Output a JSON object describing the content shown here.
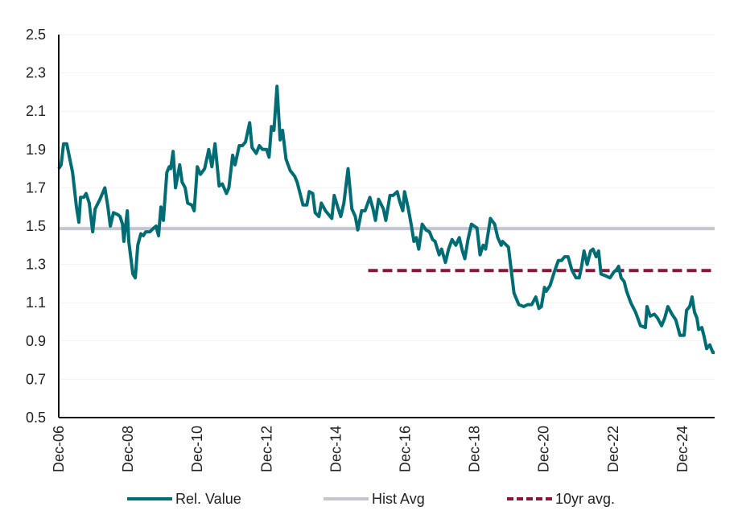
{
  "chart_data": {
    "type": "line",
    "title": "",
    "xlabel": "",
    "ylabel": "",
    "ylim": [
      0.5,
      2.5
    ],
    "yticks": [
      "0.5",
      "0.7",
      "0.9",
      "1.1",
      "1.3",
      "1.5",
      "1.7",
      "1.9",
      "2.1",
      "2.3",
      "2.5"
    ],
    "xlim_years": [
      2006.92,
      2025.85
    ],
    "xticks": [
      {
        "label": "Dec-06",
        "year": 2006.92
      },
      {
        "label": "Dec-08",
        "year": 2008.92
      },
      {
        "label": "Dec-10",
        "year": 2010.92
      },
      {
        "label": "Dec-12",
        "year": 2012.92
      },
      {
        "label": "Dec-14",
        "year": 2014.92
      },
      {
        "label": "Dec-16",
        "year": 2016.92
      },
      {
        "label": "Dec-18",
        "year": 2018.92
      },
      {
        "label": "Dec-20",
        "year": 2020.92
      },
      {
        "label": "Dec-22",
        "year": 2022.92
      },
      {
        "label": "Dec-24",
        "year": 2024.92
      }
    ],
    "grid": true,
    "legend_position": "bottom",
    "series": [
      {
        "name": "Rel. Value",
        "color": "#006D75",
        "style": "solid",
        "points": [
          [
            2006.92,
            1.8
          ],
          [
            2006.99,
            1.82
          ],
          [
            2007.06,
            1.93
          ],
          [
            2007.15,
            1.93
          ],
          [
            2007.32,
            1.78
          ],
          [
            2007.43,
            1.6
          ],
          [
            2007.5,
            1.52
          ],
          [
            2007.55,
            1.65
          ],
          [
            2007.64,
            1.65
          ],
          [
            2007.71,
            1.67
          ],
          [
            2007.8,
            1.62
          ],
          [
            2007.9,
            1.47
          ],
          [
            2007.97,
            1.59
          ],
          [
            2008.11,
            1.64
          ],
          [
            2008.25,
            1.7
          ],
          [
            2008.34,
            1.6
          ],
          [
            2008.41,
            1.5
          ],
          [
            2008.5,
            1.57
          ],
          [
            2008.62,
            1.56
          ],
          [
            2008.69,
            1.55
          ],
          [
            2008.76,
            1.51
          ],
          [
            2008.8,
            1.42
          ],
          [
            2008.9,
            1.58
          ],
          [
            2008.94,
            1.42
          ],
          [
            2009.06,
            1.25
          ],
          [
            2009.13,
            1.23
          ],
          [
            2009.2,
            1.4
          ],
          [
            2009.29,
            1.46
          ],
          [
            2009.36,
            1.45
          ],
          [
            2009.43,
            1.47
          ],
          [
            2009.55,
            1.47
          ],
          [
            2009.66,
            1.49
          ],
          [
            2009.73,
            1.5
          ],
          [
            2009.8,
            1.45
          ],
          [
            2009.87,
            1.6
          ],
          [
            2009.94,
            1.53
          ],
          [
            2010.04,
            1.78
          ],
          [
            2010.11,
            1.81
          ],
          [
            2010.15,
            1.8
          ],
          [
            2010.22,
            1.89
          ],
          [
            2010.29,
            1.7
          ],
          [
            2010.41,
            1.82
          ],
          [
            2010.48,
            1.73
          ],
          [
            2010.57,
            1.7
          ],
          [
            2010.64,
            1.62
          ],
          [
            2010.76,
            1.61
          ],
          [
            2010.83,
            1.58
          ],
          [
            2010.92,
            1.81
          ],
          [
            2011.01,
            1.77
          ],
          [
            2011.13,
            1.8
          ],
          [
            2011.25,
            1.9
          ],
          [
            2011.34,
            1.81
          ],
          [
            2011.43,
            1.93
          ],
          [
            2011.55,
            1.71
          ],
          [
            2011.64,
            1.72
          ],
          [
            2011.76,
            1.67
          ],
          [
            2011.83,
            1.7
          ],
          [
            2011.94,
            1.87
          ],
          [
            2012.01,
            1.82
          ],
          [
            2012.13,
            1.92
          ],
          [
            2012.22,
            1.92
          ],
          [
            2012.31,
            1.94
          ],
          [
            2012.43,
            2.04
          ],
          [
            2012.5,
            1.91
          ],
          [
            2012.62,
            1.88
          ],
          [
            2012.71,
            1.92
          ],
          [
            2012.8,
            1.9
          ],
          [
            2012.92,
            1.9
          ],
          [
            2012.99,
            1.86
          ],
          [
            2013.06,
            2.02
          ],
          [
            2013.13,
            2.0
          ],
          [
            2013.22,
            2.23
          ],
          [
            2013.31,
            1.95
          ],
          [
            2013.38,
            2.0
          ],
          [
            2013.48,
            1.85
          ],
          [
            2013.6,
            1.79
          ],
          [
            2013.73,
            1.76
          ],
          [
            2013.8,
            1.73
          ],
          [
            2013.9,
            1.66
          ],
          [
            2013.97,
            1.61
          ],
          [
            2014.08,
            1.61
          ],
          [
            2014.15,
            1.68
          ],
          [
            2014.25,
            1.67
          ],
          [
            2014.32,
            1.57
          ],
          [
            2014.43,
            1.55
          ],
          [
            2014.5,
            1.62
          ],
          [
            2014.62,
            1.58
          ],
          [
            2014.71,
            1.56
          ],
          [
            2014.8,
            1.54
          ],
          [
            2014.87,
            1.66
          ],
          [
            2014.97,
            1.6
          ],
          [
            2015.06,
            1.55
          ],
          [
            2015.15,
            1.62
          ],
          [
            2015.27,
            1.8
          ],
          [
            2015.38,
            1.59
          ],
          [
            2015.48,
            1.55
          ],
          [
            2015.55,
            1.48
          ],
          [
            2015.66,
            1.58
          ],
          [
            2015.76,
            1.58
          ],
          [
            2015.9,
            1.65
          ],
          [
            2015.99,
            1.59
          ],
          [
            2016.06,
            1.53
          ],
          [
            2016.15,
            1.64
          ],
          [
            2016.29,
            1.59
          ],
          [
            2016.36,
            1.53
          ],
          [
            2016.48,
            1.66
          ],
          [
            2016.57,
            1.66
          ],
          [
            2016.69,
            1.68
          ],
          [
            2016.76,
            1.63
          ],
          [
            2016.85,
            1.58
          ],
          [
            2016.9,
            1.68
          ],
          [
            2017.01,
            1.59
          ],
          [
            2017.1,
            1.5
          ],
          [
            2017.17,
            1.42
          ],
          [
            2017.24,
            1.44
          ],
          [
            2017.31,
            1.38
          ],
          [
            2017.41,
            1.51
          ],
          [
            2017.52,
            1.48
          ],
          [
            2017.62,
            1.47
          ],
          [
            2017.71,
            1.43
          ],
          [
            2017.78,
            1.42
          ],
          [
            2017.9,
            1.35
          ],
          [
            2017.97,
            1.38
          ],
          [
            2018.08,
            1.31
          ],
          [
            2018.17,
            1.38
          ],
          [
            2018.27,
            1.43
          ],
          [
            2018.38,
            1.4
          ],
          [
            2018.48,
            1.44
          ],
          [
            2018.57,
            1.37
          ],
          [
            2018.64,
            1.33
          ],
          [
            2018.73,
            1.43
          ],
          [
            2018.83,
            1.51
          ],
          [
            2018.99,
            1.49
          ],
          [
            2019.08,
            1.35
          ],
          [
            2019.17,
            1.4
          ],
          [
            2019.24,
            1.38
          ],
          [
            2019.38,
            1.54
          ],
          [
            2019.5,
            1.51
          ],
          [
            2019.59,
            1.44
          ],
          [
            2019.69,
            1.4
          ],
          [
            2019.73,
            1.42
          ],
          [
            2019.9,
            1.39
          ],
          [
            2020.06,
            1.15
          ],
          [
            2020.2,
            1.09
          ],
          [
            2020.34,
            1.08
          ],
          [
            2020.45,
            1.09
          ],
          [
            2020.57,
            1.09
          ],
          [
            2020.69,
            1.13
          ],
          [
            2020.78,
            1.07
          ],
          [
            2020.85,
            1.08
          ],
          [
            2020.94,
            1.18
          ],
          [
            2020.99,
            1.16
          ],
          [
            2021.1,
            1.19
          ],
          [
            2021.22,
            1.26
          ],
          [
            2021.34,
            1.32
          ],
          [
            2021.43,
            1.32
          ],
          [
            2021.52,
            1.34
          ],
          [
            2021.62,
            1.34
          ],
          [
            2021.73,
            1.27
          ],
          [
            2021.85,
            1.23
          ],
          [
            2021.94,
            1.23
          ],
          [
            2022.01,
            1.29
          ],
          [
            2022.08,
            1.37
          ],
          [
            2022.17,
            1.3
          ],
          [
            2022.27,
            1.37
          ],
          [
            2022.34,
            1.38
          ],
          [
            2022.43,
            1.34
          ],
          [
            2022.5,
            1.37
          ],
          [
            2022.57,
            1.25
          ],
          [
            2022.71,
            1.24
          ],
          [
            2022.83,
            1.23
          ],
          [
            2022.94,
            1.26
          ],
          [
            2023.01,
            1.27
          ],
          [
            2023.08,
            1.29
          ],
          [
            2023.15,
            1.23
          ],
          [
            2023.24,
            1.21
          ],
          [
            2023.31,
            1.16
          ],
          [
            2023.43,
            1.1
          ],
          [
            2023.57,
            1.05
          ],
          [
            2023.71,
            0.98
          ],
          [
            2023.85,
            0.97
          ],
          [
            2023.9,
            1.08
          ],
          [
            2023.99,
            1.03
          ],
          [
            2024.11,
            1.04
          ],
          [
            2024.2,
            1.02
          ],
          [
            2024.32,
            0.98
          ],
          [
            2024.41,
            1.02
          ],
          [
            2024.5,
            1.08
          ],
          [
            2024.62,
            1.04
          ],
          [
            2024.73,
            1.01
          ],
          [
            2024.85,
            0.93
          ],
          [
            2024.97,
            0.93
          ],
          [
            2025.04,
            1.06
          ],
          [
            2025.13,
            1.08
          ],
          [
            2025.2,
            1.13
          ],
          [
            2025.27,
            1.05
          ],
          [
            2025.34,
            1.02
          ],
          [
            2025.39,
            0.96
          ],
          [
            2025.48,
            0.97
          ],
          [
            2025.55,
            0.92
          ],
          [
            2025.62,
            0.86
          ],
          [
            2025.71,
            0.88
          ],
          [
            2025.8,
            0.84
          ],
          [
            2025.85,
            0.84
          ]
        ]
      },
      {
        "name": "Hist Avg",
        "color": "#C5C5D0",
        "style": "solid",
        "points": [
          [
            2006.92,
            1.487
          ],
          [
            2025.85,
            1.487
          ]
        ]
      },
      {
        "name": "10yr avg.",
        "color": "#8B1538",
        "style": "dashed",
        "points": [
          [
            2015.85,
            1.268
          ],
          [
            2025.85,
            1.268
          ]
        ]
      }
    ]
  }
}
